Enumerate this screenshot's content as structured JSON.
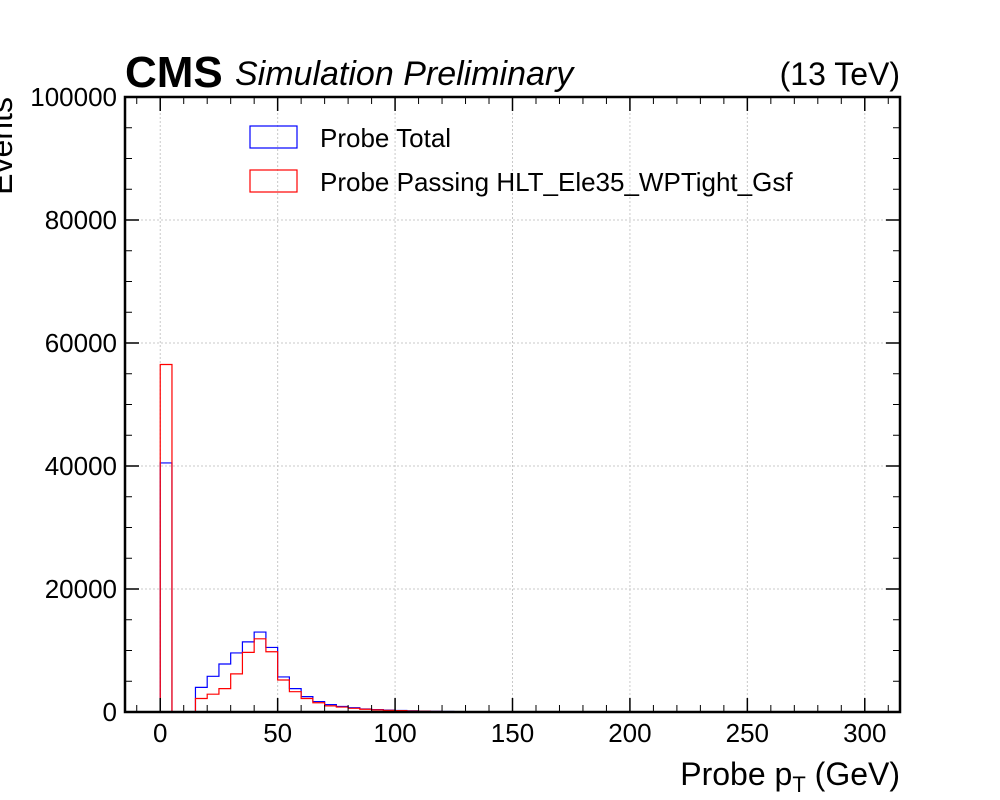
{
  "header": {
    "experiment": "CMS",
    "status": "Simulation Preliminary",
    "energy": "(13 TeV)"
  },
  "chart_data": {
    "type": "histogram",
    "xlabel_main": "Probe p",
    "xlabel_sub": "T",
    "xlabel_unit": " (GeV)",
    "ylabel": "Events",
    "xlim": [
      -15,
      315
    ],
    "ylim": [
      0,
      100000
    ],
    "x_ticks": [
      "0",
      "50",
      "100",
      "150",
      "200",
      "250",
      "300"
    ],
    "y_ticks": [
      "0",
      "20000",
      "40000",
      "60000",
      "80000",
      "100000"
    ],
    "grid": true,
    "legend_position": "top-left",
    "bin_edges": [
      0,
      5,
      10,
      15,
      20,
      25,
      30,
      35,
      40,
      45,
      50,
      55,
      60,
      65,
      70,
      75,
      80,
      85,
      90,
      95,
      100,
      105,
      110,
      115,
      120,
      125
    ],
    "series": [
      {
        "name": "Probe Total",
        "color": "#0000ff",
        "values": [
          40500,
          0,
          0,
          4000,
          5800,
          7800,
          9600,
          11400,
          13000,
          10500,
          5700,
          3800,
          2500,
          1700,
          1200,
          900,
          700,
          500,
          400,
          300,
          250,
          180,
          150,
          100,
          80
        ]
      },
      {
        "name": "Probe Passing HLT_Ele35_WPTight_Gsf",
        "color": "#ff0000",
        "values": [
          56500,
          0,
          0,
          2200,
          2900,
          3800,
          6200,
          9700,
          11900,
          9800,
          5200,
          3300,
          2200,
          1500,
          1000,
          800,
          600,
          450,
          350,
          270,
          220,
          160,
          130,
          90,
          70
        ]
      }
    ]
  }
}
